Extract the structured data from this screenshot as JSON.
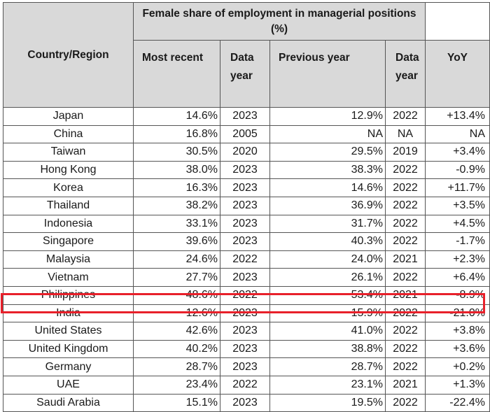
{
  "table": {
    "header": {
      "country": "Country/Region",
      "group": "Female share of employment in managerial positions (%)",
      "most_recent": "Most recent",
      "data_year_1": "Data year",
      "previous_year": "Previous year",
      "data_year_2": "Data year",
      "yoy": "YoY"
    },
    "rows": [
      {
        "country": "Japan",
        "recent": "14.6%",
        "recent_year": "2023",
        "previous": "12.9%",
        "previous_year": "2022",
        "yoy": "+13.4%"
      },
      {
        "country": "China",
        "recent": "16.8%",
        "recent_year": "2005",
        "previous": "NA",
        "previous_year": "NA",
        "yoy": "NA"
      },
      {
        "country": "Taiwan",
        "recent": "30.5%",
        "recent_year": "2020",
        "previous": "29.5%",
        "previous_year": "2019",
        "yoy": "+3.4%"
      },
      {
        "country": "Hong Kong",
        "recent": "38.0%",
        "recent_year": "2023",
        "previous": "38.3%",
        "previous_year": "2022",
        "yoy": "-0.9%"
      },
      {
        "country": "Korea",
        "recent": "16.3%",
        "recent_year": "2023",
        "previous": "14.6%",
        "previous_year": "2022",
        "yoy": "+11.7%"
      },
      {
        "country": "Thailand",
        "recent": "38.2%",
        "recent_year": "2023",
        "previous": "36.9%",
        "previous_year": "2022",
        "yoy": "+3.5%"
      },
      {
        "country": "Indonesia",
        "recent": "33.1%",
        "recent_year": "2023",
        "previous": "31.7%",
        "previous_year": "2022",
        "yoy": "+4.5%"
      },
      {
        "country": "Singapore",
        "recent": "39.6%",
        "recent_year": "2023",
        "previous": "40.3%",
        "previous_year": "2022",
        "yoy": "-1.7%"
      },
      {
        "country": "Malaysia",
        "recent": "24.6%",
        "recent_year": "2022",
        "previous": "24.0%",
        "previous_year": "2021",
        "yoy": "+2.3%"
      },
      {
        "country": "Vietnam",
        "recent": "27.7%",
        "recent_year": "2023",
        "previous": "26.1%",
        "previous_year": "2022",
        "yoy": "+6.4%"
      },
      {
        "country": "Philippines",
        "recent": "48.6%",
        "recent_year": "2022",
        "previous": "53.4%",
        "previous_year": "2021",
        "yoy": "-8.9%"
      },
      {
        "country": "India",
        "recent": "12.6%",
        "recent_year": "2023",
        "previous": "15.9%",
        "previous_year": "2022",
        "yoy": "-21.0%"
      },
      {
        "country": "United States",
        "recent": "42.6%",
        "recent_year": "2023",
        "previous": "41.0%",
        "previous_year": "2022",
        "yoy": "+3.8%"
      },
      {
        "country": "United Kingdom",
        "recent": "40.2%",
        "recent_year": "2023",
        "previous": "38.8%",
        "previous_year": "2022",
        "yoy": "+3.6%"
      },
      {
        "country": "Germany",
        "recent": "28.7%",
        "recent_year": "2023",
        "previous": "28.7%",
        "previous_year": "2022",
        "yoy": "+0.2%"
      },
      {
        "country": "UAE",
        "recent": "23.4%",
        "recent_year": "2022",
        "previous": "23.1%",
        "previous_year": "2021",
        "yoy": "+1.3%"
      },
      {
        "country": "Saudi Arabia",
        "recent": "15.1%",
        "recent_year": "2023",
        "previous": "19.5%",
        "previous_year": "2022",
        "yoy": "-22.4%"
      }
    ],
    "highlight_color": "#e8202a",
    "header_color": "#d9d9d9"
  }
}
